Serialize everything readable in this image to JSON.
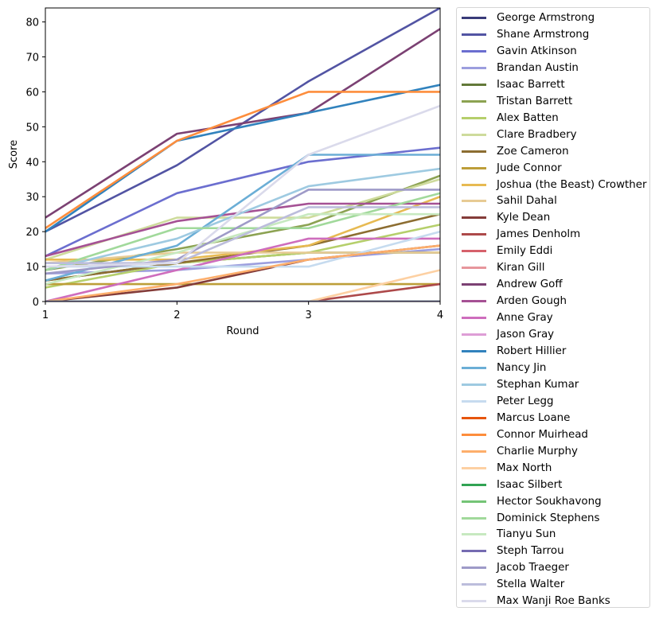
{
  "chart_data": {
    "type": "line",
    "title": "",
    "xlabel": "Round",
    "ylabel": "Score",
    "x": [
      1,
      2,
      3,
      4
    ],
    "xticks": [
      1,
      2,
      3,
      4
    ],
    "yticks": [
      0,
      10,
      20,
      30,
      40,
      50,
      60,
      70,
      80
    ],
    "xlim": [
      1,
      4
    ],
    "ylim": [
      0,
      84
    ],
    "grid": false,
    "legend_position": "outside right",
    "series": [
      {
        "name": "George Armstrong",
        "color": "#393b79",
        "values": [
          0,
          0,
          0,
          0
        ]
      },
      {
        "name": "Shane Armstrong",
        "color": "#5254a3",
        "values": [
          20,
          39,
          63,
          84
        ]
      },
      {
        "name": "Gavin Atkinson",
        "color": "#6b6ecf",
        "values": [
          13,
          31,
          40,
          44
        ]
      },
      {
        "name": "Brandan Austin",
        "color": "#9c9ede",
        "values": [
          8,
          9,
          12,
          15
        ]
      },
      {
        "name": "Isaac Barrett",
        "color": "#637939",
        "values": [
          6,
          11,
          14,
          14
        ]
      },
      {
        "name": "Tristan Barrett",
        "color": "#8ca252",
        "values": [
          9,
          15,
          22,
          36
        ]
      },
      {
        "name": "Alex Batten",
        "color": "#b5cf6b",
        "values": [
          4,
          11,
          14,
          22
        ]
      },
      {
        "name": "Clare Bradbery",
        "color": "#cedb9c",
        "values": [
          12,
          24,
          24,
          35
        ]
      },
      {
        "name": "Zoe Cameron",
        "color": "#8c6d31",
        "values": [
          6,
          11,
          16,
          25
        ]
      },
      {
        "name": "Jude Connor",
        "color": "#bd9e39",
        "values": [
          5,
          5,
          5,
          5
        ]
      },
      {
        "name": "Joshua (the Beast) Crowther",
        "color": "#e7ba52",
        "values": [
          12,
          12,
          16,
          30
        ]
      },
      {
        "name": "Sahil Dahal",
        "color": "#e7cb94",
        "values": [
          11,
          14,
          14,
          14
        ]
      },
      {
        "name": "Kyle Dean",
        "color": "#843c39",
        "values": [
          0,
          4,
          12,
          16
        ]
      },
      {
        "name": "James Denholm",
        "color": "#ad494a",
        "values": [
          0,
          0,
          0,
          5
        ]
      },
      {
        "name": "Emily Eddi",
        "color": "#d6616b",
        "values": [
          0,
          0,
          0,
          0
        ]
      },
      {
        "name": "Kiran Gill",
        "color": "#e7969c",
        "values": [
          0,
          0,
          0,
          0
        ]
      },
      {
        "name": "Andrew Goff",
        "color": "#7b4173",
        "values": [
          24,
          48,
          54,
          78
        ]
      },
      {
        "name": "Arden Gough",
        "color": "#a55194",
        "values": [
          13,
          23,
          28,
          28
        ]
      },
      {
        "name": "Anne Gray",
        "color": "#ce6dbd",
        "values": [
          0,
          9,
          18,
          18
        ]
      },
      {
        "name": "Jason Gray",
        "color": "#de9ed6",
        "values": [
          0,
          0,
          0,
          0
        ]
      },
      {
        "name": "Robert Hillier",
        "color": "#3182bd",
        "values": [
          20,
          46,
          54,
          62
        ]
      },
      {
        "name": "Nancy Jin",
        "color": "#6baed6",
        "values": [
          6,
          16,
          42,
          42
        ]
      },
      {
        "name": "Stephan Kumar",
        "color": "#9ecae1",
        "values": [
          9,
          18,
          33,
          38
        ]
      },
      {
        "name": "Peter Legg",
        "color": "#c6dbef",
        "values": [
          10,
          10,
          10,
          20
        ]
      },
      {
        "name": "Marcus Loane",
        "color": "#e6550d",
        "values": [
          0,
          0,
          0,
          0
        ]
      },
      {
        "name": "Connor Muirhead",
        "color": "#fd8d3c",
        "values": [
          21,
          46,
          60,
          60
        ]
      },
      {
        "name": "Charlie Murphy",
        "color": "#fdae6b",
        "values": [
          0,
          5,
          12,
          16
        ]
      },
      {
        "name": "Max North",
        "color": "#fdd0a2",
        "values": [
          0,
          0,
          0,
          9
        ]
      },
      {
        "name": "Isaac Silbert",
        "color": "#31a354",
        "values": [
          0,
          0,
          0,
          0
        ]
      },
      {
        "name": "Hector Soukhavong",
        "color": "#74c476",
        "values": [
          0,
          0,
          0,
          0
        ]
      },
      {
        "name": "Dominick Stephens",
        "color": "#a1d99b",
        "values": [
          9,
          21,
          21,
          31
        ]
      },
      {
        "name": "Tianyu Sun",
        "color": "#c7e9c0",
        "values": [
          5,
          14,
          25,
          25
        ]
      },
      {
        "name": "Steph Tarrou",
        "color": "#756bb1",
        "values": [
          0,
          0,
          0,
          0
        ]
      },
      {
        "name": "Jacob Traeger",
        "color": "#9e9ac8",
        "values": [
          8,
          12,
          32,
          32
        ]
      },
      {
        "name": "Stella Walter",
        "color": "#bcbddc",
        "values": [
          11,
          11,
          27,
          27
        ]
      },
      {
        "name": "Max Wanji Roe Banks",
        "color": "#dadaeb",
        "values": [
          10,
          11,
          42,
          56
        ]
      }
    ]
  }
}
